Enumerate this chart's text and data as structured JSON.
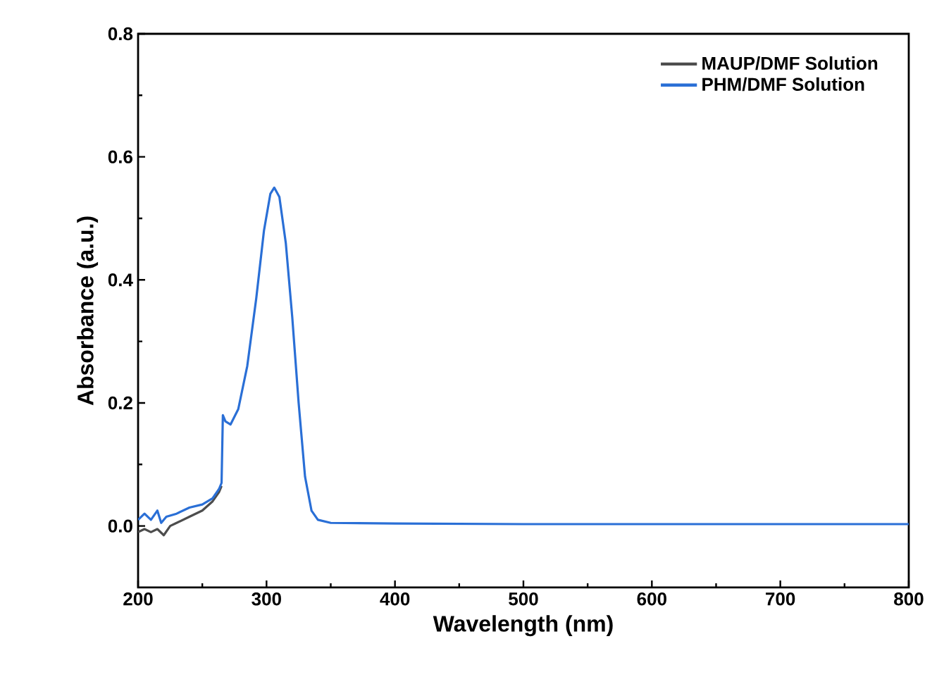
{
  "chart_data": {
    "type": "line",
    "xlabel": "Wavelength (nm)",
    "ylabel": "Absorbance (a.u.)",
    "xlim": [
      200,
      800
    ],
    "ylim": [
      -0.1,
      0.8
    ],
    "xticks": [
      200,
      300,
      400,
      500,
      600,
      700,
      800
    ],
    "yticks": [
      {
        "value": 0,
        "label": "0.0"
      },
      {
        "value": 0.2,
        "label": "0.2"
      },
      {
        "value": 0.4,
        "label": "0.4"
      },
      {
        "value": 0.6,
        "label": "0.6"
      },
      {
        "value": 0.8,
        "label": "0.8"
      }
    ],
    "grid": false,
    "legend": "top right",
    "marker": "none",
    "line_style": "solid",
    "series": [
      {
        "name": "MAUP/DMF Solution",
        "color": "#4d4d4d",
        "x": [
          200,
          205,
          210,
          215,
          220,
          225,
          230,
          240,
          250,
          258,
          263,
          265
        ],
        "values": [
          -0.01,
          -0.005,
          -0.01,
          -0.005,
          -0.015,
          0.0,
          0.005,
          0.015,
          0.025,
          0.04,
          0.055,
          0.065
        ]
      },
      {
        "name": "PHM/DMF Solution",
        "color": "#2a6fd6",
        "x": [
          200,
          205,
          210,
          215,
          218,
          222,
          230,
          240,
          250,
          258,
          263,
          265,
          266,
          268,
          272,
          278,
          285,
          292,
          298,
          303,
          306,
          310,
          315,
          320,
          325,
          330,
          335,
          340,
          350,
          400,
          500,
          600,
          700,
          800
        ],
        "values": [
          0.01,
          0.02,
          0.01,
          0.025,
          0.005,
          0.015,
          0.02,
          0.03,
          0.035,
          0.045,
          0.06,
          0.07,
          0.18,
          0.17,
          0.165,
          0.19,
          0.26,
          0.37,
          0.48,
          0.54,
          0.55,
          0.535,
          0.46,
          0.34,
          0.2,
          0.08,
          0.025,
          0.01,
          0.005,
          0.004,
          0.003,
          0.003,
          0.003,
          0.003
        ]
      }
    ]
  }
}
